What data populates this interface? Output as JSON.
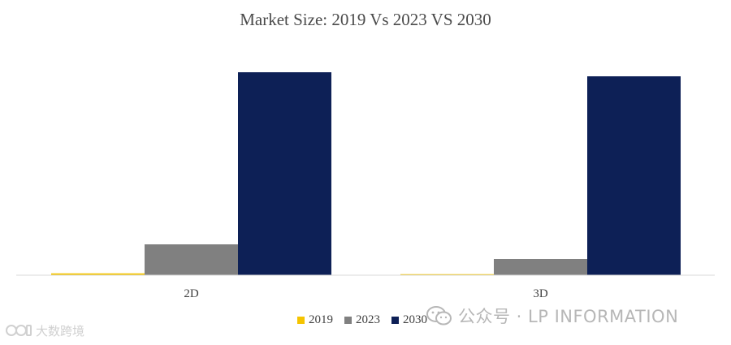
{
  "chart_data": {
    "type": "bar",
    "title": "Market Size: 2019 Vs 2023 VS 2030",
    "categories": [
      "2D",
      "3D"
    ],
    "series": [
      {
        "name": "2019",
        "color": "#f5c400",
        "values": [
          0.9,
          0.5
        ]
      },
      {
        "name": "2023",
        "color": "#808080",
        "values": [
          15.2,
          8.0
        ]
      },
      {
        "name": "2030",
        "color": "#0d2056",
        "values": [
          100,
          98
        ]
      }
    ],
    "xlabel": "",
    "ylabel": "",
    "ylim": [
      0,
      100
    ],
    "grid": false,
    "legend": "bottom-center"
  },
  "watermarks": {
    "right_text": "公众号 · LP INFORMATION",
    "right_icon": "wechat-icon",
    "left_text": "大数跨境",
    "left_icon": "logo-icon"
  }
}
